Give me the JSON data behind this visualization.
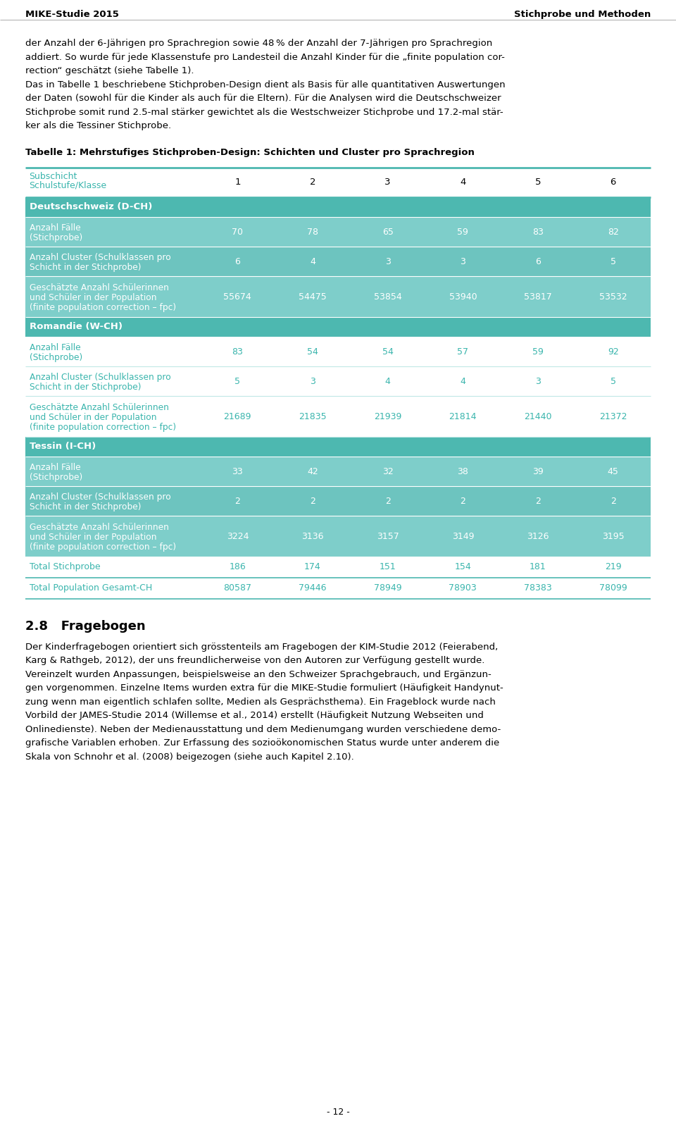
{
  "header_left": "MIKE-Studie 2015",
  "header_right": "Stichprobe und Methoden",
  "body_text_para1": [
    "der Anzahl der 6-Jährigen pro Sprachregion sowie 48 % der Anzahl der 7-Jährigen pro Sprachregion",
    "addiert. So wurde für jede Klassenstufe pro Landesteil die Anzahl Kinder für die „finite population cor-",
    "rection“ geschätzt (siehe Tabelle 1)."
  ],
  "body_text_para2": [
    "Das in Tabelle 1 beschriebene Stichproben-Design dient als Basis für alle quantitativen Auswertungen",
    "der Daten (sowohl für die Kinder als auch für die Eltern). Für die Analysen wird die Deutschschweizer",
    "Stichprobe somit rund 2.5-mal stärker gewichtet als die Westschweizer Stichprobe und 17.2-mal stär-",
    "ker als die Tessiner Stichprobe."
  ],
  "table_title": "Tabelle 1: Mehrstufiges Stichproben-Design: Schichten und Cluster pro Sprachregion",
  "teal_section_header": "#4db8b0",
  "teal_row_odd": "#7ececa",
  "teal_row_even": "#6dc4bf",
  "teal_text_color": "#3ab5ad",
  "white": "#ffffff",
  "sections": [
    {
      "name": "Deutschschweiz (D-CH)",
      "rows": [
        {
          "label": "Anzahl Fälle\n(Stichprobe)",
          "values": [
            "70",
            "78",
            "65",
            "59",
            "83",
            "82"
          ],
          "text_color": "white",
          "bg": "odd"
        },
        {
          "label": "Anzahl Cluster (Schulklassen pro\nSchicht in der Stichprobe)",
          "values": [
            "6",
            "4",
            "3",
            "3",
            "6",
            "5"
          ],
          "text_color": "white",
          "bg": "even"
        },
        {
          "label": "Geschätzte Anzahl Schülerinnen\nund Schüler in der Population\n(finite population correction – fpc)",
          "values": [
            "55674",
            "54475",
            "53854",
            "53940",
            "53817",
            "53532"
          ],
          "text_color": "white",
          "bg": "odd"
        }
      ]
    },
    {
      "name": "Romandie (W-CH)",
      "rows": [
        {
          "label": "Anzahl Fälle\n(Stichprobe)",
          "values": [
            "83",
            "54",
            "54",
            "57",
            "59",
            "92"
          ],
          "text_color": "teal",
          "bg": "white"
        },
        {
          "label": "Anzahl Cluster (Schulklassen pro\nSchicht in der Stichprobe)",
          "values": [
            "5",
            "3",
            "4",
            "4",
            "3",
            "5"
          ],
          "text_color": "teal",
          "bg": "white"
        },
        {
          "label": "Geschätzte Anzahl Schülerinnen\nund Schüler in der Population\n(finite population correction – fpc)",
          "values": [
            "21689",
            "21835",
            "21939",
            "21814",
            "21440",
            "21372"
          ],
          "text_color": "teal",
          "bg": "white"
        }
      ]
    },
    {
      "name": "Tessin (I-CH)",
      "rows": [
        {
          "label": "Anzahl Fälle\n(Stichprobe)",
          "values": [
            "33",
            "42",
            "32",
            "38",
            "39",
            "45"
          ],
          "text_color": "white",
          "bg": "odd"
        },
        {
          "label": "Anzahl Cluster (Schulklassen pro\nSchicht in der Stichprobe)",
          "values": [
            "2",
            "2",
            "2",
            "2",
            "2",
            "2"
          ],
          "text_color": "white",
          "bg": "even"
        },
        {
          "label": "Geschätzte Anzahl Schülerinnen\nund Schüler in der Population\n(finite population correction – fpc)",
          "values": [
            "3224",
            "3136",
            "3157",
            "3149",
            "3126",
            "3195"
          ],
          "text_color": "white",
          "bg": "odd"
        }
      ]
    }
  ],
  "footer_rows": [
    {
      "label": "Total Stichprobe",
      "values": [
        "186",
        "174",
        "151",
        "154",
        "181",
        "219"
      ]
    },
    {
      "label": "Total Population Gesamt-CH",
      "values": [
        "80587",
        "79446",
        "78949",
        "78903",
        "78383",
        "78099"
      ]
    }
  ],
  "section28_title": "2.8   Fragebogen",
  "section28_text": [
    "Der Kinderfragebogen orientiert sich grösstenteils am Fragebogen der KIM-Studie 2012 (Feierabend,",
    "Karg & Rathgeb, 2012), der uns freundlicherweise von den Autoren zur Verfügung gestellt wurde.",
    "Vereinzelt wurden Anpassungen, beispielsweise an den Schweizer Sprachgebrauch, und Ergänzun-",
    "gen vorgenommen. Einzelne Items wurden extra für die MIKE-Studie formuliert (Häufigkeit Handynut-",
    "zung wenn man eigentlich schlafen sollte, Medien als Gesprächsthema). Ein Frageblock wurde nach",
    "Vorbild der JAMES-Studie 2014 (Willemse et al., 2014) erstellt (Häufigkeit Nutzung Webseiten und",
    "Onlinedienste). Neben der Medienausstattung und dem Medienumgang wurden verschiedene demo-",
    "grafische Variablen erhoben. Zur Erfassung des sozioökonomischen Status wurde unter anderem die",
    "Skala von Schnohr et al. (2008) beigezogen (siehe auch Kapitel 2.10)."
  ],
  "page_number": "- 12 -"
}
